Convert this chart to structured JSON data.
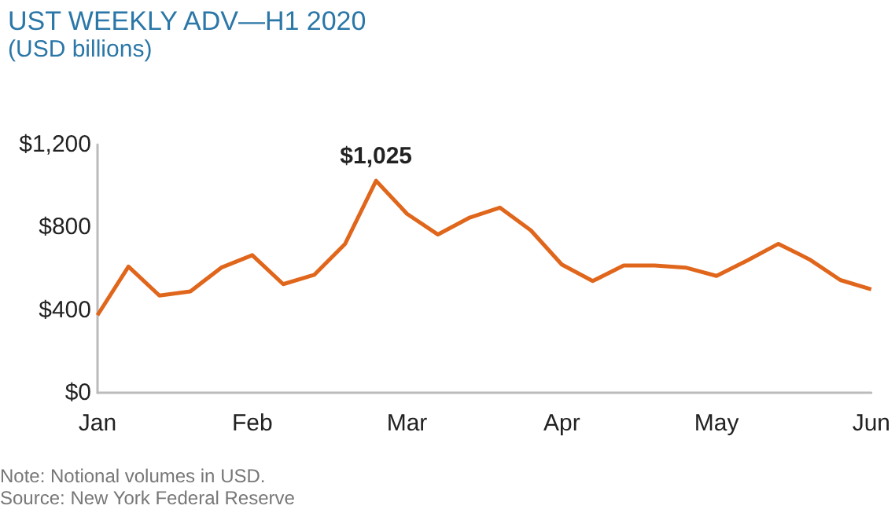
{
  "chart_data": {
    "type": "line",
    "title": "UST WEEKLY ADV—H1 2020",
    "subtitle": "(USD billions)",
    "categories": [
      "Jan",
      null,
      null,
      null,
      null,
      "Feb",
      null,
      null,
      null,
      null,
      "Mar",
      null,
      null,
      null,
      null,
      "Apr",
      null,
      null,
      null,
      null,
      "May",
      null,
      null,
      null,
      null,
      "Jun"
    ],
    "series": [
      {
        "color": "#e0661c",
        "values": [
          375,
          610,
          470,
          490,
          605,
          665,
          525,
          570,
          720,
          1025,
          865,
          765,
          845,
          895,
          785,
          620,
          540,
          615,
          615,
          605,
          565,
          640,
          720,
          645,
          545,
          500
        ],
        "value_labels": [
          null,
          null,
          null,
          null,
          null,
          null,
          null,
          null,
          null,
          "$1,025",
          null,
          null,
          null,
          null,
          null,
          null,
          null,
          null,
          null,
          null,
          null,
          null,
          null,
          null,
          null,
          null
        ]
      }
    ],
    "ylim": [
      0,
      1200
    ],
    "yticks": [
      {
        "value": 0,
        "label": "$0"
      },
      {
        "value": 400,
        "label": "$400"
      },
      {
        "value": 800,
        "label": "$800"
      },
      {
        "value": 1200,
        "label": "$1,200"
      }
    ],
    "grid": false,
    "marker": "none",
    "line_style": "solid",
    "annotations": [
      "Note: Notional volumes in USD.",
      "Source: New York Federal Reserve"
    ]
  }
}
